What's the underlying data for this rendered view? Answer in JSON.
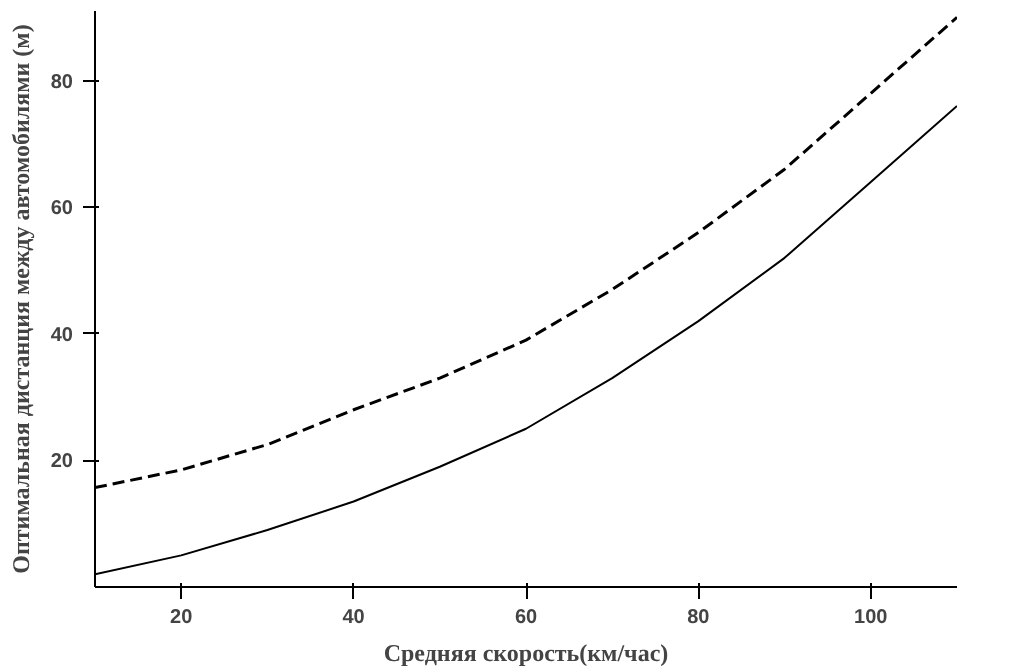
{
  "chart_data": {
    "type": "line",
    "xlabel": "Средняя скорость(км/час)",
    "ylabel": "Оптимальная дистанция между автомобилями (м)",
    "xlim": [
      10,
      110
    ],
    "ylim": [
      0,
      91
    ],
    "xticks": [
      20,
      40,
      60,
      80,
      100
    ],
    "yticks": [
      20,
      40,
      60,
      80
    ],
    "grid": false,
    "series": [
      {
        "color": "#000000",
        "line_style": "solid",
        "x": [
          10,
          20,
          30,
          40,
          50,
          60,
          70,
          80,
          90,
          100,
          110
        ],
        "values": [
          2,
          5,
          9,
          13.5,
          19,
          25,
          33,
          42,
          52,
          64,
          76
        ]
      },
      {
        "color": "#000000",
        "line_style": "dashed",
        "x": [
          10,
          20,
          30,
          40,
          50,
          60,
          70,
          80,
          90,
          100,
          110
        ],
        "values": [
          15.7,
          18.5,
          22.5,
          28,
          33,
          39,
          47,
          56,
          66,
          78,
          90
        ]
      }
    ]
  }
}
